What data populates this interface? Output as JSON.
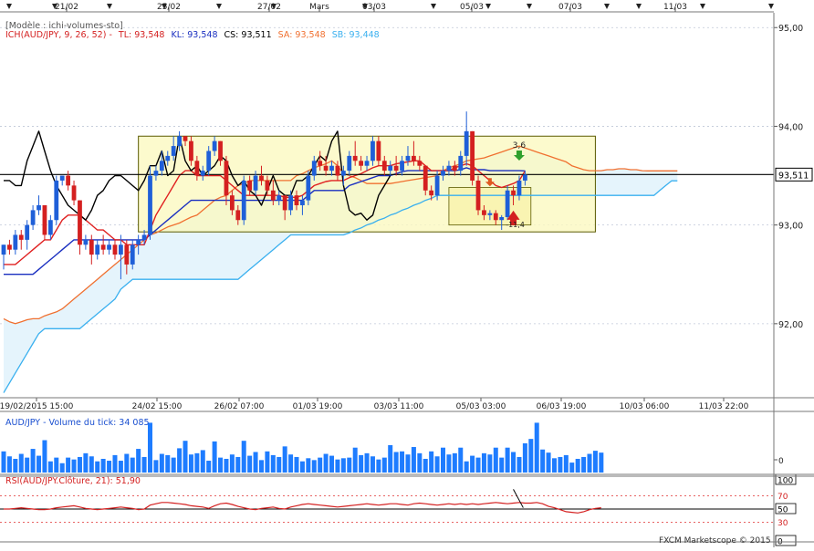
{
  "chart_data": {
    "type": "candlestick",
    "model_label": "[Modèle : ichi-volumes-sto]",
    "top_dates": [
      "21/02",
      "25/02",
      "27/02",
      "Mars",
      "03/03",
      "05/03",
      "07/03",
      "11/03"
    ],
    "bottom_dates": [
      "19/02/2015 15:00",
      "24/02 15:00",
      "26/02 07:00",
      "01/03 19:00",
      "03/03 11:00",
      "05/03 03:00",
      "06/03 19:00",
      "10/03 06:00",
      "11/03 22:00"
    ],
    "price_axis": {
      "ticks": [
        "95,00",
        "94,00",
        "93,00",
        "92,00"
      ],
      "tick_values": [
        95,
        94,
        93,
        92
      ],
      "range": [
        91.25,
        95.15
      ],
      "current_value": 93.511,
      "current_label": "93,511"
    },
    "ichimoku_legend": {
      "name": "ICH(AUD/JPY, 9, 26, 52) -",
      "tl": "TL: 93,548",
      "kl": "KL: 93,548",
      "cs": "CS: 93,511",
      "sa": "SA: 93,548",
      "sb": "SB: 93,448"
    },
    "annotations": {
      "up_label": "3,6",
      "down_label": "-11,4"
    },
    "volume_title": "AUD/JPY - Volume du tick: 34 085",
    "volume_values": [
      34,
      26,
      22,
      30,
      24,
      38,
      27,
      52,
      18,
      24,
      15,
      24,
      21,
      25,
      31,
      26,
      18,
      22,
      19,
      28,
      19,
      30,
      24,
      38,
      25,
      80,
      20,
      30,
      28,
      24,
      39,
      51,
      29,
      31,
      36,
      19,
      50,
      24,
      22,
      29,
      25,
      51,
      27,
      33,
      20,
      34,
      28,
      25,
      42,
      29,
      25,
      18,
      23,
      20,
      24,
      30,
      27,
      21,
      23,
      24,
      40,
      28,
      31,
      26,
      21,
      24,
      44,
      33,
      34,
      29,
      41,
      31,
      22,
      34,
      26,
      40,
      29,
      31,
      40,
      18,
      27,
      24,
      31,
      29,
      40,
      24,
      40,
      33,
      25,
      47,
      54,
      80,
      37,
      32,
      23,
      25,
      28,
      16,
      22,
      25,
      30,
      35,
      32
    ],
    "rsi_title": "RSI(AUD/JPY.Clôture, 21): 51,90",
    "rsi_axis": {
      "ticks": [
        "100",
        "70",
        "50",
        "30",
        "0"
      ],
      "range": [
        0,
        100
      ]
    },
    "rsi_values": [
      50,
      50,
      51,
      52,
      51,
      50,
      49,
      49,
      50,
      52,
      53,
      54,
      55,
      53,
      51,
      50,
      49,
      50,
      51,
      52,
      53,
      52,
      51,
      49,
      50,
      56,
      58,
      60,
      60,
      59,
      58,
      57,
      55,
      54,
      53,
      51,
      55,
      58,
      59,
      57,
      54,
      52,
      50,
      49,
      51,
      52,
      53,
      51,
      50,
      53,
      55,
      57,
      58,
      57,
      56,
      55,
      54,
      53,
      54,
      55,
      56,
      57,
      58,
      57,
      56,
      57,
      58,
      58,
      57,
      56,
      58,
      59,
      58,
      57,
      56,
      57,
      58,
      57,
      58,
      57,
      58,
      57,
      58,
      59,
      60,
      59,
      58,
      59,
      60,
      59,
      59,
      60,
      58,
      54,
      52,
      49,
      46,
      45,
      44,
      46,
      49,
      51,
      52
    ],
    "candles": [
      [
        92.7,
        92.8,
        92.55,
        92.8
      ],
      [
        92.8,
        92.85,
        92.7,
        92.75
      ],
      [
        92.75,
        92.95,
        92.7,
        92.9
      ],
      [
        92.9,
        92.95,
        92.75,
        92.85
      ],
      [
        92.85,
        93.05,
        92.75,
        93.0
      ],
      [
        93.0,
        93.2,
        92.95,
        93.15
      ],
      [
        93.15,
        93.3,
        93.1,
        93.2
      ],
      [
        93.2,
        93.2,
        92.85,
        92.9
      ],
      [
        92.9,
        93.1,
        92.85,
        93.05
      ],
      [
        93.05,
        93.5,
        93.0,
        93.45
      ],
      [
        93.45,
        93.5,
        93.4,
        93.5
      ],
      [
        93.5,
        93.55,
        93.35,
        93.4
      ],
      [
        93.4,
        93.45,
        93.2,
        93.25
      ],
      [
        93.25,
        93.25,
        92.7,
        92.8
      ],
      [
        92.8,
        92.9,
        92.75,
        92.85
      ],
      [
        92.85,
        92.9,
        92.6,
        92.7
      ],
      [
        92.7,
        92.85,
        92.65,
        92.8
      ],
      [
        92.8,
        92.9,
        92.7,
        92.75
      ],
      [
        92.75,
        92.85,
        92.7,
        92.8
      ],
      [
        92.8,
        92.85,
        92.65,
        92.7
      ],
      [
        92.7,
        92.9,
        92.45,
        92.8
      ],
      [
        92.8,
        92.85,
        92.5,
        92.6
      ],
      [
        92.6,
        92.85,
        92.55,
        92.8
      ],
      [
        92.8,
        92.9,
        92.7,
        92.85
      ],
      [
        92.85,
        92.95,
        92.8,
        92.9
      ],
      [
        92.9,
        93.6,
        92.85,
        93.5
      ],
      [
        93.5,
        93.6,
        93.45,
        93.55
      ],
      [
        93.55,
        93.75,
        93.5,
        93.65
      ],
      [
        93.65,
        93.75,
        93.6,
        93.7
      ],
      [
        93.7,
        93.9,
        93.65,
        93.8
      ],
      [
        93.8,
        93.95,
        93.75,
        93.9
      ],
      [
        93.9,
        93.9,
        93.8,
        93.85
      ],
      [
        93.85,
        93.9,
        93.6,
        93.65
      ],
      [
        93.65,
        93.7,
        93.45,
        93.5
      ],
      [
        93.5,
        93.6,
        93.45,
        93.55
      ],
      [
        93.55,
        93.8,
        93.5,
        93.75
      ],
      [
        93.75,
        93.9,
        93.7,
        93.85
      ],
      [
        93.85,
        93.85,
        93.6,
        93.65
      ],
      [
        93.65,
        93.7,
        93.2,
        93.3
      ],
      [
        93.3,
        93.35,
        93.1,
        93.15
      ],
      [
        93.15,
        93.2,
        93.0,
        93.05
      ],
      [
        93.05,
        93.5,
        93.0,
        93.45
      ],
      [
        93.45,
        93.5,
        93.3,
        93.35
      ],
      [
        93.35,
        93.55,
        93.3,
        93.5
      ],
      [
        93.5,
        93.6,
        93.4,
        93.45
      ],
      [
        93.45,
        93.5,
        93.3,
        93.35
      ],
      [
        93.35,
        93.45,
        93.2,
        93.25
      ],
      [
        93.25,
        93.35,
        93.2,
        93.3
      ],
      [
        93.3,
        93.3,
        93.05,
        93.15
      ],
      [
        93.15,
        93.35,
        93.1,
        93.3
      ],
      [
        93.3,
        93.35,
        93.15,
        93.2
      ],
      [
        93.2,
        93.3,
        93.1,
        93.25
      ],
      [
        93.25,
        93.55,
        93.2,
        93.5
      ],
      [
        93.5,
        93.7,
        93.45,
        93.65
      ],
      [
        93.65,
        93.75,
        93.55,
        93.6
      ],
      [
        93.6,
        93.7,
        93.5,
        93.55
      ],
      [
        93.55,
        93.65,
        93.5,
        93.6
      ],
      [
        93.6,
        93.65,
        93.45,
        93.5
      ],
      [
        93.5,
        93.6,
        93.4,
        93.55
      ],
      [
        93.55,
        93.75,
        93.5,
        93.7
      ],
      [
        93.7,
        93.85,
        93.6,
        93.65
      ],
      [
        93.65,
        93.7,
        93.55,
        93.6
      ],
      [
        93.6,
        93.7,
        93.55,
        93.65
      ],
      [
        93.65,
        93.9,
        93.6,
        93.85
      ],
      [
        93.85,
        93.9,
        93.6,
        93.65
      ],
      [
        93.65,
        93.7,
        93.5,
        93.55
      ],
      [
        93.55,
        93.65,
        93.5,
        93.6
      ],
      [
        93.6,
        93.7,
        93.5,
        93.55
      ],
      [
        93.55,
        93.7,
        93.5,
        93.65
      ],
      [
        93.65,
        93.8,
        93.6,
        93.7
      ],
      [
        93.7,
        93.85,
        93.6,
        93.65
      ],
      [
        93.65,
        93.7,
        93.55,
        93.6
      ],
      [
        93.6,
        93.6,
        93.3,
        93.35
      ],
      [
        93.35,
        93.4,
        93.25,
        93.3
      ],
      [
        93.3,
        93.55,
        93.25,
        93.5
      ],
      [
        93.5,
        93.6,
        93.45,
        93.55
      ],
      [
        93.55,
        93.65,
        93.5,
        93.6
      ],
      [
        93.6,
        93.65,
        93.5,
        93.55
      ],
      [
        93.55,
        93.75,
        93.5,
        93.7
      ],
      [
        93.7,
        94.15,
        93.6,
        93.95
      ],
      [
        93.95,
        93.95,
        93.4,
        93.45
      ],
      [
        93.45,
        93.5,
        93.1,
        93.15
      ],
      [
        93.15,
        93.2,
        93.05,
        93.1
      ],
      [
        93.1,
        93.15,
        93.05,
        93.12
      ],
      [
        93.12,
        93.15,
        93.0,
        93.05
      ],
      [
        93.05,
        93.1,
        92.95,
        93.08
      ],
      [
        93.08,
        93.4,
        93.05,
        93.35
      ],
      [
        93.35,
        93.4,
        93.2,
        93.3
      ],
      [
        93.3,
        93.5,
        93.25,
        93.45
      ],
      [
        93.45,
        93.55,
        93.4,
        93.51
      ]
    ],
    "tenkan": [
      92.6,
      92.6,
      92.6,
      92.65,
      92.7,
      92.75,
      92.8,
      92.85,
      92.85,
      92.95,
      93.05,
      93.1,
      93.1,
      93.1,
      93.05,
      93.0,
      92.95,
      92.95,
      92.9,
      92.85,
      92.85,
      92.8,
      92.8,
      92.8,
      92.8,
      92.95,
      93.1,
      93.2,
      93.3,
      93.4,
      93.5,
      93.55,
      93.55,
      93.5,
      93.5,
      93.5,
      93.5,
      93.5,
      93.45,
      93.4,
      93.35,
      93.3,
      93.3,
      93.3,
      93.3,
      93.3,
      93.3,
      93.3,
      93.28,
      93.28,
      93.28,
      93.3,
      93.35,
      93.4,
      93.42,
      93.44,
      93.45,
      93.45,
      93.45,
      93.48,
      93.5,
      93.52,
      93.55,
      93.58,
      93.6,
      93.6,
      93.6,
      93.62,
      93.63,
      93.64,
      93.65,
      93.65,
      93.6,
      93.55,
      93.55,
      93.55,
      93.55,
      93.58,
      93.6,
      93.62,
      93.6,
      93.55,
      93.5,
      93.45,
      93.4,
      93.38,
      93.4,
      93.42,
      93.45,
      93.548
    ],
    "kijun": [
      92.5,
      92.5,
      92.5,
      92.5,
      92.5,
      92.5,
      92.55,
      92.6,
      92.65,
      92.7,
      92.75,
      92.8,
      92.85,
      92.85,
      92.85,
      92.85,
      92.85,
      92.85,
      92.85,
      92.85,
      92.85,
      92.85,
      92.85,
      92.85,
      92.85,
      92.9,
      92.95,
      93.0,
      93.05,
      93.1,
      93.15,
      93.2,
      93.25,
      93.25,
      93.25,
      93.25,
      93.25,
      93.25,
      93.25,
      93.25,
      93.25,
      93.25,
      93.25,
      93.25,
      93.25,
      93.25,
      93.25,
      93.25,
      93.25,
      93.25,
      93.25,
      93.25,
      93.3,
      93.35,
      93.35,
      93.35,
      93.35,
      93.35,
      93.35,
      93.4,
      93.42,
      93.44,
      93.46,
      93.48,
      93.5,
      93.5,
      93.5,
      93.52,
      93.54,
      93.55,
      93.55,
      93.55,
      93.55,
      93.55,
      93.55,
      93.55,
      93.55,
      93.55,
      93.56,
      93.58,
      93.56,
      93.56,
      93.56,
      93.55,
      93.55,
      93.55,
      93.55,
      93.55,
      93.55,
      93.548
    ],
    "chikou": [
      93.45,
      93.45,
      93.4,
      93.4,
      93.65,
      93.8,
      93.95,
      93.75,
      93.55,
      93.4,
      93.3,
      93.2,
      93.15,
      93.1,
      93.05,
      93.15,
      93.3,
      93.35,
      93.45,
      93.5,
      93.5,
      93.45,
      93.4,
      93.35,
      93.45,
      93.6,
      93.6,
      93.75,
      93.5,
      93.55,
      93.9,
      93.65,
      93.55,
      93.6,
      93.5,
      93.55,
      93.6,
      93.7,
      93.65,
      93.5,
      93.4,
      93.45,
      93.35,
      93.3,
      93.2,
      93.35,
      93.5,
      93.35,
      93.3,
      93.3,
      93.45,
      93.45,
      93.5,
      93.6,
      93.7,
      93.65,
      93.85,
      93.95,
      93.4,
      93.15,
      93.1,
      93.12,
      93.05,
      93.1,
      93.3,
      93.4,
      93.5
    ],
    "senkou_a": [
      92.05,
      92.02,
      92.0,
      92.02,
      92.04,
      92.05,
      92.05,
      92.08,
      92.1,
      92.12,
      92.15,
      92.2,
      92.25,
      92.3,
      92.35,
      92.4,
      92.45,
      92.5,
      92.55,
      92.6,
      92.65,
      92.7,
      92.75,
      92.8,
      92.85,
      92.9,
      92.92,
      92.95,
      92.98,
      93.0,
      93.02,
      93.05,
      93.08,
      93.1,
      93.15,
      93.2,
      93.25,
      93.28,
      93.3,
      93.35,
      93.4,
      93.42,
      93.45,
      93.45,
      93.45,
      93.45,
      93.45,
      93.45,
      93.45,
      93.45,
      93.5,
      93.52,
      93.55,
      93.58,
      93.6,
      93.62,
      93.65,
      93.6,
      93.52,
      93.5,
      93.48,
      93.45,
      93.42,
      93.42,
      93.42,
      93.42,
      93.42,
      93.43,
      93.44,
      93.45,
      93.46,
      93.47,
      93.48,
      93.49,
      93.5,
      93.55,
      93.58,
      93.6,
      93.62,
      93.65,
      93.66,
      93.67,
      93.68,
      93.7,
      93.72,
      93.74,
      93.76,
      93.78,
      93.8,
      93.78,
      93.76,
      93.74,
      93.72,
      93.7,
      93.68,
      93.66,
      93.64,
      93.6,
      93.58,
      93.56,
      93.55,
      93.55,
      93.55,
      93.56,
      93.56,
      93.57,
      93.57,
      93.56,
      93.56,
      93.55,
      93.548,
      93.548,
      93.548,
      93.548,
      93.548,
      93.548
    ],
    "senkou_b": [
      91.3,
      91.4,
      91.5,
      91.6,
      91.7,
      91.8,
      91.9,
      91.95,
      91.95,
      91.95,
      91.95,
      91.95,
      91.95,
      91.95,
      92.0,
      92.05,
      92.1,
      92.15,
      92.2,
      92.25,
      92.35,
      92.4,
      92.45,
      92.45,
      92.45,
      92.45,
      92.45,
      92.45,
      92.45,
      92.45,
      92.45,
      92.45,
      92.45,
      92.45,
      92.45,
      92.45,
      92.45,
      92.45,
      92.45,
      92.45,
      92.45,
      92.5,
      92.55,
      92.6,
      92.65,
      92.7,
      92.75,
      92.8,
      92.85,
      92.9,
      92.9,
      92.9,
      92.9,
      92.9,
      92.9,
      92.9,
      92.9,
      92.9,
      92.9,
      92.92,
      92.95,
      92.97,
      93.0,
      93.02,
      93.05,
      93.07,
      93.1,
      93.12,
      93.15,
      93.17,
      93.2,
      93.22,
      93.25,
      93.27,
      93.3,
      93.3,
      93.3,
      93.3,
      93.3,
      93.3,
      93.3,
      93.3,
      93.3,
      93.3,
      93.3,
      93.3,
      93.3,
      93.3,
      93.3,
      93.3,
      93.3,
      93.3,
      93.3,
      93.3,
      93.3,
      93.3,
      93.3,
      93.3,
      93.3,
      93.3,
      93.3,
      93.3,
      93.3,
      93.3,
      93.3,
      93.3,
      93.3,
      93.3,
      93.3,
      93.3,
      93.3,
      93.3,
      93.35,
      93.4,
      93.448,
      93.448
    ],
    "consolidation_box": {
      "from_index": 23,
      "to_index": 101,
      "high": 93.9,
      "low": 92.93
    },
    "inner_box": {
      "from_index": 76,
      "to_index": 90,
      "high": 93.38,
      "low": 93.0
    }
  },
  "colors": {
    "bull": "#1f5fd8",
    "bear": "#d42020",
    "tenkan": "#e02020",
    "kijun": "#1a2fc0",
    "chikou": "#000000",
    "senkou_a": "#f07030",
    "senkou_b": "#3ab0ef",
    "cloud": "#e5f4fc",
    "box_fill": "#fbf8bf",
    "box_stroke": "#5a5a00",
    "volume": "#1e7cff",
    "rsi": "#d42020"
  },
  "watermark": "FXCM Marketscope © 2015"
}
